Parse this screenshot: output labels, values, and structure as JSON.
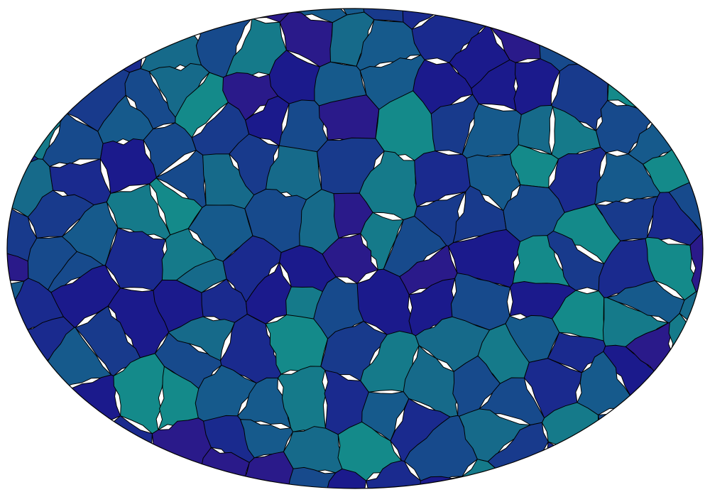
{
  "map": {
    "projection": "elliptical",
    "style": "Voronoi-like tessellated regions with jagged borders, filled with a blue–teal palette",
    "border_color": "#000000",
    "palette": [
      "#2a1a8a",
      "#1b1a8c",
      "#1a2a8e",
      "#183a8c",
      "#174a8c",
      "#165a8c",
      "#166a8a",
      "#157a8a",
      "#148a8a"
    ],
    "background_color": "#ffffff"
  }
}
